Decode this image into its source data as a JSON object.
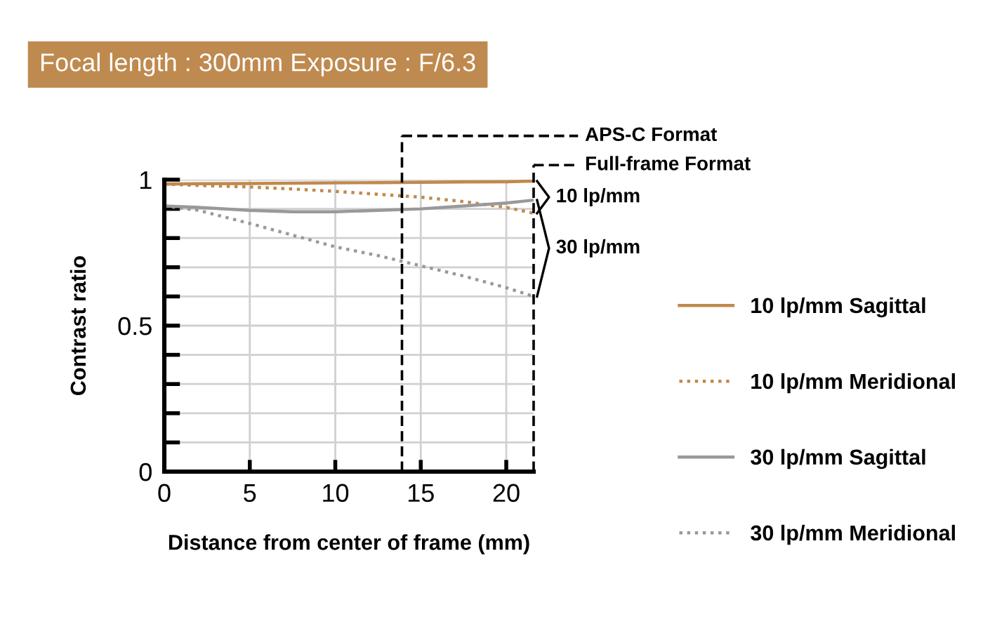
{
  "chart_data": {
    "type": "line",
    "title": "Focal length : 300mm Exposure : F/6.3",
    "xlabel": "Distance from center of frame (mm)",
    "ylabel": "Contrast ratio",
    "x": [
      0,
      2,
      5,
      7.5,
      10,
      12.5,
      15,
      17.5,
      20,
      21.6
    ],
    "series": [
      {
        "name": "10 lp/mm Sagittal",
        "color": "#c0894e",
        "line_style": "solid",
        "values": [
          0.985,
          0.986,
          0.987,
          0.988,
          0.989,
          0.99,
          0.991,
          0.992,
          0.993,
          0.995
        ]
      },
      {
        "name": "10 lp/mm Meridional",
        "color": "#c0894e",
        "line_style": "dotted",
        "values": [
          0.985,
          0.98,
          0.975,
          0.968,
          0.96,
          0.95,
          0.94,
          0.925,
          0.905,
          0.885
        ]
      },
      {
        "name": "30 lp/mm Sagittal",
        "color": "#999999",
        "line_style": "solid",
        "values": [
          0.91,
          0.905,
          0.895,
          0.89,
          0.89,
          0.895,
          0.9,
          0.91,
          0.92,
          0.93
        ]
      },
      {
        "name": "30 lp/mm Meridional",
        "color": "#999999",
        "line_style": "dotted",
        "values": [
          0.91,
          0.895,
          0.85,
          0.81,
          0.77,
          0.74,
          0.705,
          0.67,
          0.63,
          0.6
        ]
      }
    ],
    "annotations": [
      "10 lp/mm",
      "30 lp/mm"
    ],
    "ref_lines": [
      {
        "axis": "x",
        "value": 13.9,
        "label": "APS-C Format",
        "color": "#000000",
        "line_style": "dashed"
      },
      {
        "axis": "x",
        "value": 21.6,
        "label": "Full-frame Format",
        "color": "#000000",
        "line_style": "dashed"
      }
    ],
    "xlim": [
      0,
      21.6
    ],
    "xticks": [
      0,
      5,
      10,
      15,
      20
    ],
    "ylim": [
      0,
      1
    ],
    "yticks": [
      0,
      {
        "value": 0.1,
        "label": null
      },
      {
        "value": 0.2,
        "label": null
      },
      {
        "value": 0.3,
        "label": null
      },
      {
        "value": 0.4,
        "label": null
      },
      0.5,
      {
        "value": 0.6,
        "label": null
      },
      {
        "value": 0.7,
        "label": null
      },
      {
        "value": 0.8,
        "label": null
      },
      {
        "value": 0.9,
        "label": null
      },
      1
    ],
    "grid": true,
    "legend": "right",
    "marker": "none"
  }
}
